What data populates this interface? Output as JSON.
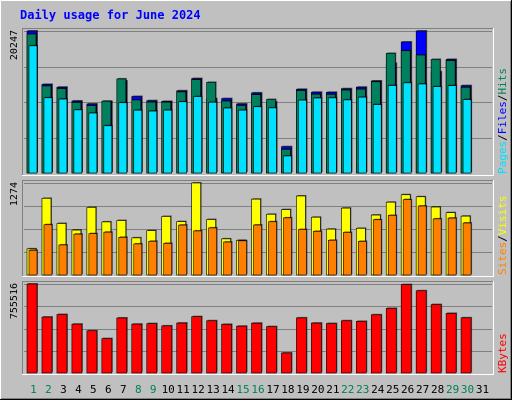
{
  "title": "Daily usage for June 2024",
  "colors": {
    "background": "#c0c0c0",
    "title": "#0000ff",
    "hits": "#00805c",
    "files": "#0000ff",
    "pages": "#00e0ff",
    "visits": "#ffff00",
    "sites": "#ff8000",
    "kbytes": "#ff0000"
  },
  "chart_data": [
    {
      "type": "bar",
      "panel": "hits-files-pages",
      "ymax_label": "20247",
      "ylim": [
        0,
        20247
      ],
      "right_label": {
        "parts": [
          "Pages",
          "Files",
          "Hits"
        ],
        "separator": "/"
      },
      "categories": [
        "1",
        "2",
        "3",
        "4",
        "5",
        "6",
        "7",
        "8",
        "9",
        "10",
        "11",
        "12",
        "13",
        "14",
        "15",
        "16",
        "17",
        "18",
        "19",
        "20",
        "21",
        "22",
        "23",
        "24",
        "25",
        "26",
        "27",
        "28",
        "29",
        "30",
        "31"
      ],
      "series": [
        {
          "name": "Hits",
          "values": [
            20247,
            12640,
            12240,
            10270,
            9850,
            10200,
            13120,
            10910,
            10310,
            10210,
            11720,
            13470,
            10590,
            10610,
            9850,
            11420,
            10140,
            3750,
            11940,
            11520,
            11510,
            12020,
            12240,
            13120,
            15630,
            18680,
            20250,
            14420,
            16200,
            12460,
            0
          ]
        },
        {
          "name": "Files",
          "values": [
            19810,
            12410,
            12030,
            10050,
            9600,
            10230,
            13410,
            10410,
            10100,
            10090,
            11560,
            13310,
            12920,
            10260,
            9620,
            11170,
            10480,
            3360,
            11750,
            11230,
            11200,
            11820,
            11950,
            13010,
            17050,
            17430,
            16820,
            16190,
            16020,
            12210,
            0
          ]
        },
        {
          "name": "Pages",
          "values": [
            18130,
            10720,
            10540,
            9000,
            8550,
            6730,
            10010,
            8950,
            8830,
            8960,
            10150,
            10890,
            10080,
            9260,
            8960,
            9440,
            9280,
            2430,
            10390,
            10690,
            10710,
            10420,
            10810,
            9750,
            12470,
            12850,
            12690,
            12310,
            12450,
            10460,
            0
          ]
        }
      ]
    },
    {
      "type": "bar",
      "panel": "visits-sites",
      "ymax_label": "1274",
      "ylim": [
        0,
        1274
      ],
      "right_label": {
        "parts": [
          "Sites",
          "Visits"
        ],
        "separator": "/"
      },
      "categories": [
        "1",
        "2",
        "3",
        "4",
        "5",
        "6",
        "7",
        "8",
        "9",
        "10",
        "11",
        "12",
        "13",
        "14",
        "15",
        "16",
        "17",
        "18",
        "19",
        "20",
        "21",
        "22",
        "23",
        "24",
        "25",
        "26",
        "27",
        "28",
        "29",
        "30",
        "31"
      ],
      "series": [
        {
          "name": "Visits",
          "values": [
            362,
            1061,
            713,
            622,
            936,
            735,
            754,
            514,
            614,
            810,
            739,
            1274,
            768,
            500,
            480,
            1050,
            841,
            905,
            1094,
            800,
            635,
            926,
            646,
            830,
            1008,
            1111,
            1083,
            941,
            863,
            815,
            0
          ]
        },
        {
          "name": "Sites",
          "values": [
            342,
            696,
            416,
            566,
            572,
            593,
            522,
            430,
            467,
            438,
            691,
            610,
            652,
            456,
            473,
            692,
            737,
            791,
            630,
            604,
            481,
            589,
            465,
            765,
            825,
            1043,
            955,
            777,
            788,
            720,
            0
          ]
        }
      ]
    },
    {
      "type": "bar",
      "panel": "kbytes",
      "ymax_label": "755516",
      "ylim": [
        0,
        755516
      ],
      "right_label": {
        "parts": [
          "KBytes"
        ],
        "separator": ""
      },
      "categories": [
        "1",
        "2",
        "3",
        "4",
        "5",
        "6",
        "7",
        "8",
        "9",
        "10",
        "11",
        "12",
        "13",
        "14",
        "15",
        "16",
        "17",
        "18",
        "19",
        "20",
        "21",
        "22",
        "23",
        "24",
        "25",
        "26",
        "27",
        "28",
        "29",
        "30",
        "31"
      ],
      "series": [
        {
          "name": "KBytes",
          "values": [
            755516,
            474770,
            496340,
            414870,
            358350,
            291830,
            467040,
            414740,
            418950,
            399820,
            423970,
            478250,
            443300,
            412870,
            397380,
            422830,
            393320,
            170000,
            467720,
            423640,
            419690,
            443330,
            438190,
            493950,
            548480,
            750000,
            697810,
            580610,
            505990,
            468370,
            0
          ]
        }
      ]
    }
  ],
  "x_labels": [
    {
      "text": "1",
      "weekend": true
    },
    {
      "text": "2",
      "weekend": true
    },
    {
      "text": "3",
      "weekend": false
    },
    {
      "text": "4",
      "weekend": false
    },
    {
      "text": "5",
      "weekend": false
    },
    {
      "text": "6",
      "weekend": false
    },
    {
      "text": "7",
      "weekend": false
    },
    {
      "text": "8",
      "weekend": true
    },
    {
      "text": "9",
      "weekend": true
    },
    {
      "text": "10",
      "weekend": false
    },
    {
      "text": "11",
      "weekend": false
    },
    {
      "text": "12",
      "weekend": false
    },
    {
      "text": "13",
      "weekend": false
    },
    {
      "text": "14",
      "weekend": false
    },
    {
      "text": "15",
      "weekend": true
    },
    {
      "text": "16",
      "weekend": true
    },
    {
      "text": "17",
      "weekend": false
    },
    {
      "text": "18",
      "weekend": false
    },
    {
      "text": "19",
      "weekend": false
    },
    {
      "text": "20",
      "weekend": false
    },
    {
      "text": "21",
      "weekend": false
    },
    {
      "text": "22",
      "weekend": true
    },
    {
      "text": "23",
      "weekend": true
    },
    {
      "text": "24",
      "weekend": false
    },
    {
      "text": "25",
      "weekend": false
    },
    {
      "text": "26",
      "weekend": false
    },
    {
      "text": "27",
      "weekend": false
    },
    {
      "text": "28",
      "weekend": false
    },
    {
      "text": "29",
      "weekend": true
    },
    {
      "text": "30",
      "weekend": true
    },
    {
      "text": "31",
      "weekend": false
    }
  ]
}
